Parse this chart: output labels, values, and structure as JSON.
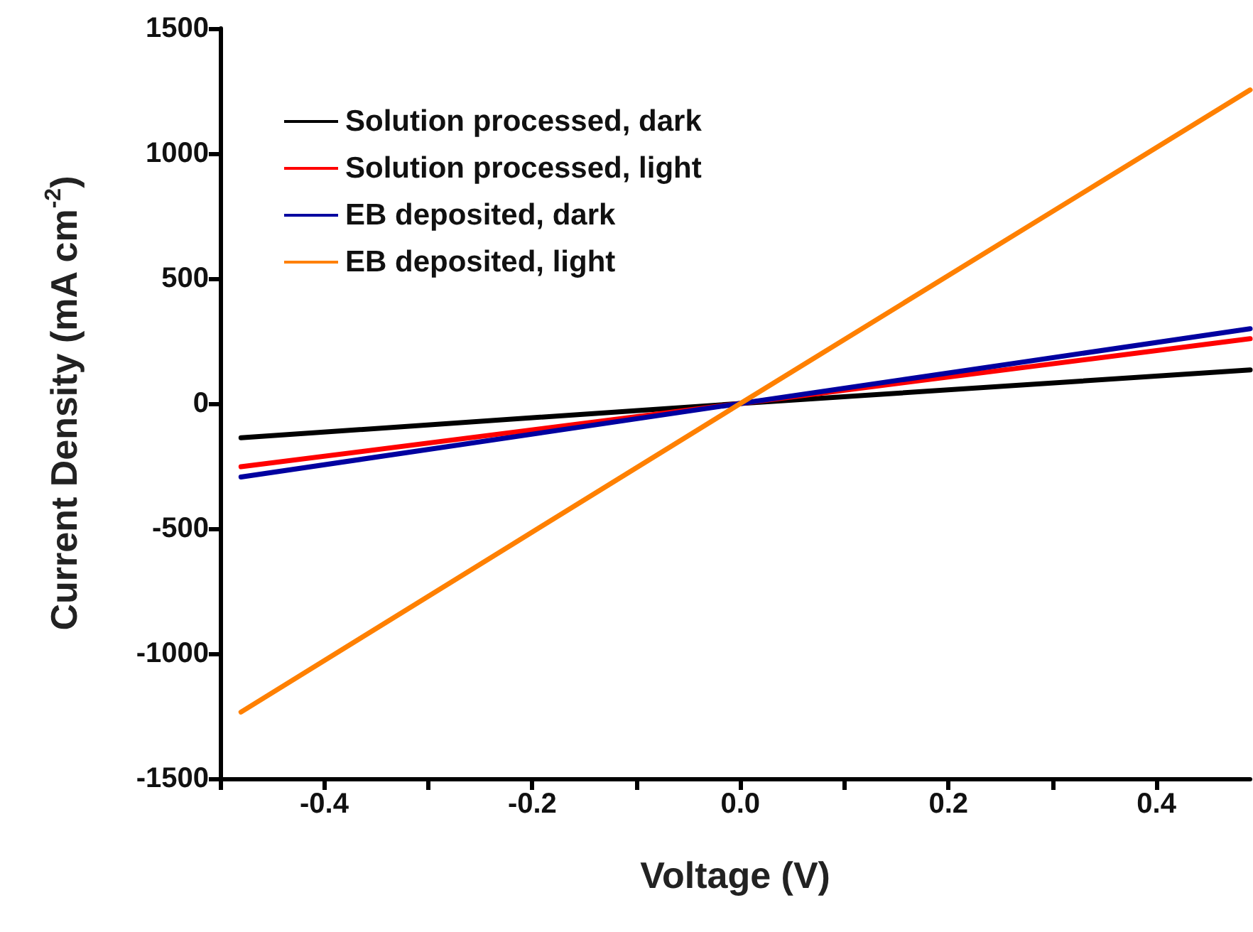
{
  "chart_data": {
    "type": "line",
    "xlabel": "Voltage (V)",
    "ylabel": "Current Density (mA cm$^{-2}$)",
    "xlim": [
      -0.5,
      0.49
    ],
    "xticks": [
      {
        "value": -0.5,
        "label": null
      },
      -0.4,
      {
        "value": -0.3,
        "label": null
      },
      -0.2,
      {
        "value": -0.1,
        "label": null
      },
      {
        "value": 0,
        "label": "0.0"
      },
      {
        "value": 0.1,
        "label": null
      },
      0.2,
      {
        "value": 0.3,
        "label": null
      },
      0.4
    ],
    "ylim": [
      -1500,
      1500
    ],
    "yticks": [
      -1500,
      -1000,
      -500,
      0,
      500,
      1000,
      1500
    ],
    "grid": false,
    "legend": "top left",
    "marker": "none",
    "line_style": "solid",
    "series": [
      {
        "name": "Solution processed, dark",
        "color": "#000000",
        "x": [
          -0.48,
          0,
          0.49
        ],
        "values": [
          -137,
          0,
          134
        ]
      },
      {
        "name": "Solution processed, light",
        "color": "#ff0000",
        "x": [
          -0.48,
          0,
          0.49
        ],
        "values": [
          -253,
          0,
          259
        ]
      },
      {
        "name": "EB deposited, dark",
        "color": "#0000a0",
        "x": [
          -0.48,
          0,
          0.49
        ],
        "values": [
          -294,
          0,
          299
        ]
      },
      {
        "name": "EB deposited, light",
        "color": "#ff8000",
        "x": [
          -0.48,
          0,
          0.49
        ],
        "values": [
          -1234,
          0,
          1254
        ]
      }
    ]
  }
}
